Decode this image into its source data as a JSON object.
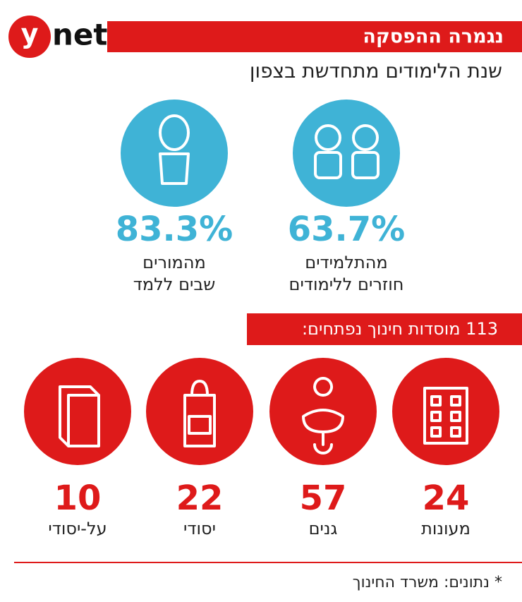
{
  "header": {
    "logo": {
      "y": "y",
      "net": "net"
    },
    "banner": "נגמרה ההפסקה",
    "subtitle": "שנת הלימודים מתחדשת בצפון"
  },
  "stats": [
    {
      "value": "63.7%",
      "line1": "מהתלמידים",
      "line2": "חוזרים ללימודים"
    },
    {
      "value": "83.3%",
      "line1": "מהמורים",
      "line2": "שבים ללמד"
    }
  ],
  "institutions": {
    "banner": "113 מוסדות חינוך נפתחים:",
    "items": [
      {
        "number": "24",
        "label": "מעונות"
      },
      {
        "number": "57",
        "label": "גנים"
      },
      {
        "number": "22",
        "label": "יסודי"
      },
      {
        "number": "10",
        "label": "על-יסודי"
      }
    ]
  },
  "source": "* נתונים: משרד החינוך"
}
